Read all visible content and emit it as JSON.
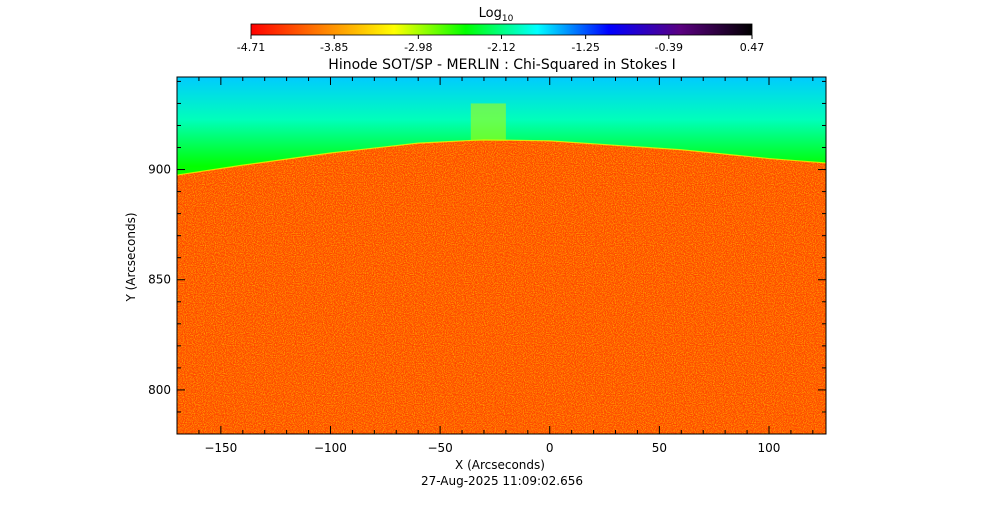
{
  "chart_data": {
    "type": "heatmap",
    "title": "Hinode SOT/SP - MERLIN : Chi-Squared in Stokes I",
    "xlabel": "X (Arcseconds)",
    "ylabel": "Y (Arcseconds)",
    "timestamp": "27-Aug-2025 11:09:02.656",
    "xlim": [
      -170,
      126
    ],
    "ylim": [
      780,
      942
    ],
    "x_ticks": [
      -150,
      -100,
      -50,
      0,
      50,
      100
    ],
    "y_ticks": [
      800,
      850,
      900
    ],
    "colorbar": {
      "label": "Log",
      "label_subscript": "10",
      "min": -4.71,
      "max": 0.47,
      "tick_values": [
        -4.71,
        -3.85,
        -2.98,
        -2.12,
        -1.25,
        -0.39,
        0.47
      ],
      "tick_labels": [
        "-4.71",
        "-3.85",
        "-2.98",
        "-2.12",
        "-1.25",
        "-0.39",
        "0.47"
      ],
      "colormap": [
        "#ff0000",
        "#ff8000",
        "#ffff00",
        "#00ff00",
        "#00ffff",
        "#0000ff",
        "#5a0080",
        "#000000"
      ]
    },
    "limb": {
      "description": "solar limb arc separating on-disk (low chi-squared, red/orange) from off-limb (higher chi-squared, green/blue)",
      "points_x": [
        -170,
        -140,
        -100,
        -60,
        -30,
        0,
        30,
        60,
        100,
        126
      ],
      "points_y": [
        897.5,
        902,
        907.5,
        912,
        913.5,
        913,
        911,
        909,
        905,
        903
      ]
    },
    "regions": {
      "disk_log10": -4.3,
      "off_limb_low_log10": -3.0,
      "off_limb_high_log10": -1.6
    }
  }
}
